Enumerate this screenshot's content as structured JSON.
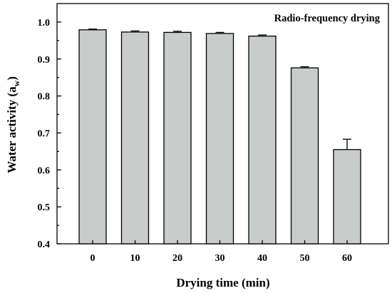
{
  "chart_data": {
    "type": "bar",
    "annotation": "Radio-frequency drying",
    "xlabel": "Drying time (min)",
    "ylabel_main": "Water activity (a",
    "ylabel_sub": "w",
    "ylabel_end": ")",
    "categories": [
      "0",
      "10",
      "20",
      "30",
      "40",
      "50",
      "60"
    ],
    "values": [
      0.979,
      0.973,
      0.972,
      0.969,
      0.962,
      0.876,
      0.655
    ],
    "errors": [
      0.002,
      0.003,
      0.003,
      0.003,
      0.003,
      0.003,
      0.028
    ],
    "ylim": [
      0.4,
      1.05
    ],
    "yticks": [
      "0.4",
      "0.5",
      "0.6",
      "0.7",
      "0.8",
      "0.9",
      "1.0"
    ],
    "bar_color": "#c8cdcb",
    "grid": false,
    "legend": "none"
  }
}
